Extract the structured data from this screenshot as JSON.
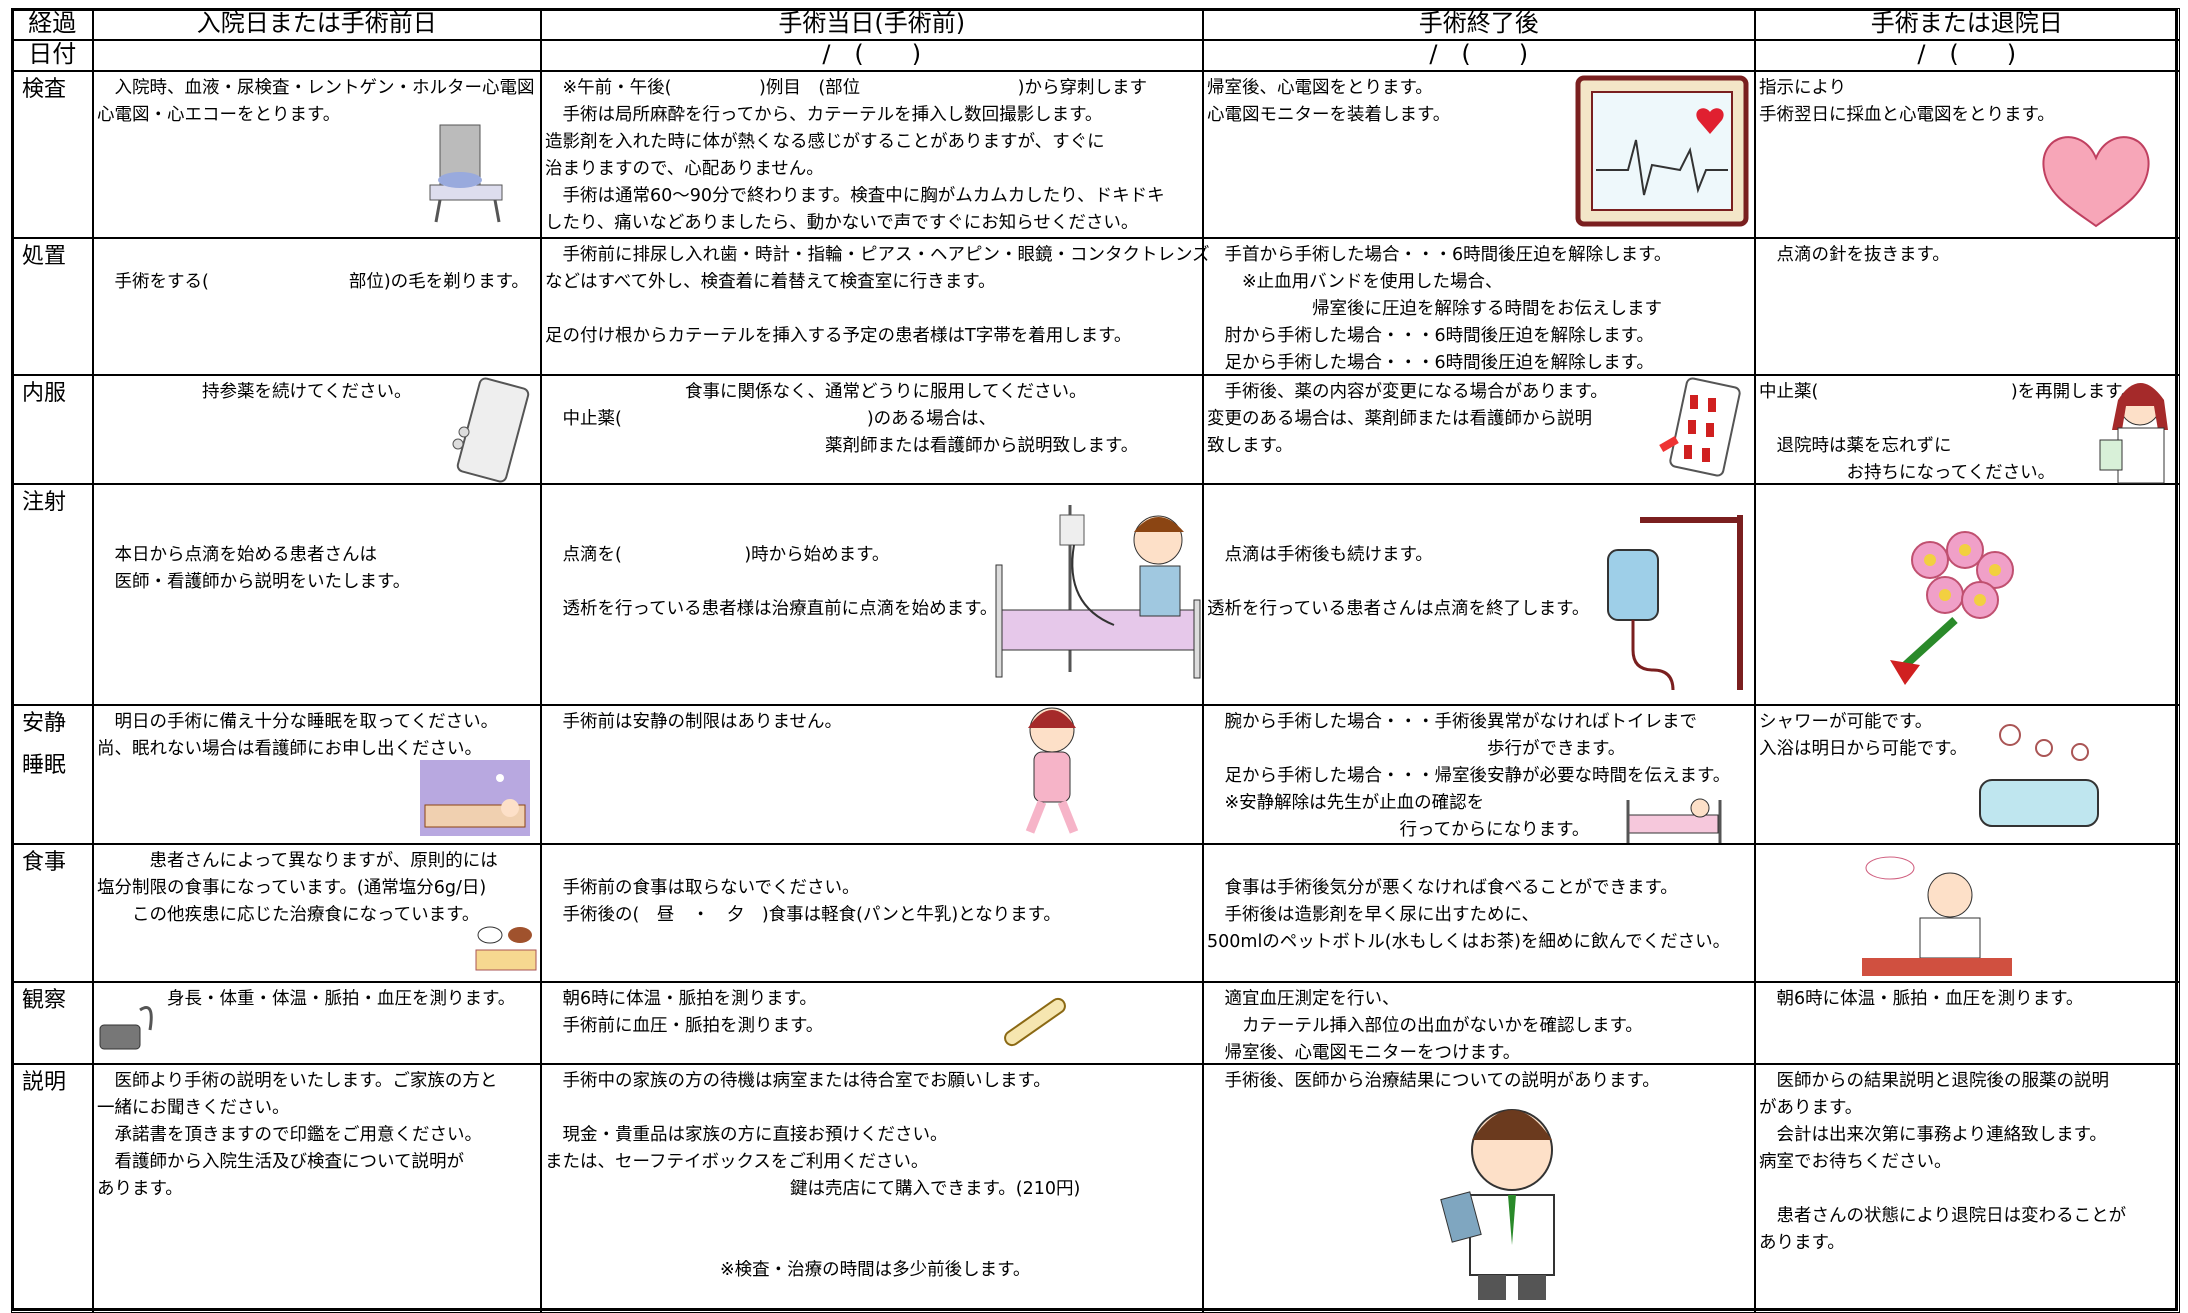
{
  "header": {
    "label": "経過",
    "columns": [
      "入院日または手術前日",
      "手術当日(手術前)",
      "手術終了後",
      "手術または退院日"
    ]
  },
  "date_row": {
    "label": "日付",
    "values": [
      null,
      "/　(　　)",
      "/　(　　)",
      "/　(　　)"
    ]
  },
  "rows": [
    {
      "label": "検査",
      "cells": [
        [
          [
            "　入院時、血液・尿検査・レントゲン・ホルター心電図",
            "心電図・心エコーをとります。"
          ]
        ],
        [
          [
            "　※午前・午後(　　　　　)例目　(部位　　　　　　　　　)から穿刺します",
            "　手術は局所麻酔を行ってから、カテーテルを挿入し数回撮影します。",
            "造影剤を入れた時に体が熱くなる感じがすることがありますが、すぐに",
            "治まりますので、心配ありません。",
            "　手術は通常60～90分で終わります。検査中に胸がムカムカしたり、ドキドキ",
            "したり、痛いなどありましたら、動かないで声ですぐにお知らせください。"
          ]
        ],
        [
          [
            "帰室後、心電図をとります。",
            "心電図モニターを装着します。"
          ]
        ],
        [
          [
            "指示により",
            "手術翌日に採血と心電図をとります。"
          ]
        ]
      ]
    },
    {
      "label": "処置",
      "cells": [
        [
          [
            "　手術をする(　　　　　　　　部位)の毛を剃ります。"
          ]
        ],
        [
          [
            "　手術前に排尿し入れ歯・時計・指輪・ピアス・ヘアピン・眼鏡・コンタクトレンズ",
            "などはすべて外し、検査着に着替えて検査室に行きます。"
          ],
          [
            "足の付け根からカテーテルを挿入する予定の患者様はT字帯を着用します。"
          ]
        ],
        [
          [
            "　手首から手術した場合・・・6時間後圧迫を解除します。",
            "　　※止血用バンドを使用した場合、",
            "　　　　　　帰室後に圧迫を解除する時間をお伝えします",
            "　肘から手術した場合・・・6時間後圧迫を解除します。",
            "　足から手術した場合・・・6時間後圧迫を解除します。"
          ]
        ],
        [
          [
            "　点滴の針を抜きます。"
          ]
        ]
      ]
    },
    {
      "label": "内服",
      "cells": [
        [
          [
            "　　　　　　持参薬を続けてください。"
          ]
        ],
        [
          [
            "　　　　　　　　食事に関係なく、通常どうりに服用してください。",
            "　中止薬(　　　　　　　　　　　　　　)のある場合は、",
            "　　　　　　　　　　　　　　　　薬剤師または看護師から説明致します。"
          ]
        ],
        [
          [
            "　手術後、薬の内容が変更になる場合があります。",
            "変更のある場合は、薬剤師または看護師から説明",
            "致します。"
          ]
        ],
        [
          [
            "中止薬(　　　　　　　　　　　)を再開します。"
          ],
          [
            "　退院時は薬を忘れずに",
            "　　　　　お持ちになってください。"
          ]
        ]
      ]
    },
    {
      "label": "注射",
      "cells": [
        [
          [
            "　本日から点滴を始める患者さんは",
            "　医師・看護師から説明をいたします。"
          ]
        ],
        [
          [
            "　点滴を(　　　　　　　)時から始めます。"
          ],
          [
            "　透析を行っている患者様は治療直前に点滴を始めます。"
          ]
        ],
        [
          [
            "　点滴は手術後も続けます。"
          ],
          [
            "透析を行っている患者さんは点滴を終了します。"
          ]
        ],
        []
      ]
    },
    {
      "label": [
        "安静",
        "睡眠"
      ],
      "cells": [
        [
          [
            "　明日の手術に備え十分な睡眠を取ってください。",
            "尚、眠れない場合は看護師にお申し出ください。"
          ]
        ],
        [
          [
            "　手術前は安静の制限はありません。"
          ]
        ],
        [
          [
            "　腕から手術した場合・・・手術後異常がなければトイレまで",
            "　　　　　　　　　　　　　　　　歩行ができます。",
            "　足から手術した場合・・・帰室後安静が必要な時間を伝えます。",
            "　※安静解除は先生が止血の確認を",
            "　　　　　　　　　　　行ってからになります。"
          ]
        ],
        [
          [
            "シャワーが可能です。",
            "入浴は明日から可能です。"
          ]
        ]
      ]
    },
    {
      "label": "食事",
      "cells": [
        [
          [
            "　　　患者さんによって異なりますが、原則的には",
            "塩分制限の食事になっています。(通常塩分6g/日)",
            "　　この他疾患に応じた治療食になっています。"
          ]
        ],
        [
          [
            "　手術前の食事は取らないでください。",
            "　手術後の(　昼　・　夕　)食事は軽食(パンと牛乳)となります。"
          ]
        ],
        [
          [
            "　食事は手術後気分が悪くなければ食べることができます。",
            "　手術後は造影剤を早く尿に出すために、",
            "500mlのペットボトル(水もしくはお茶)を細めに飲んでください。"
          ]
        ],
        []
      ]
    },
    {
      "label": "観察",
      "cells": [
        [
          [
            "　　　　身長・体重・体温・脈拍・血圧を測ります。"
          ]
        ],
        [
          [
            "　朝6時に体温・脈拍を測ります。",
            "　手術前に血圧・脈拍を測ります。"
          ]
        ],
        [
          [
            "　適宜血圧測定を行い、",
            "　　カテーテル挿入部位の出血がないかを確認します。",
            "　帰室後、心電図モニターをつけます。"
          ]
        ],
        [
          [
            "　朝6時に体温・脈拍・血圧を測ります。"
          ]
        ]
      ]
    },
    {
      "label": "説明",
      "cells": [
        [
          [
            "　医師より手術の説明をいたします。ご家族の方と",
            "一緒にお聞きください。",
            "　承諾書を頂きますので印鑑をご用意ください。",
            "　看護師から入院生活及び検査について説明が",
            "あります。"
          ]
        ],
        [
          [
            "　手術中の家族の方の待機は病室または待合室でお願いします。"
          ],
          [
            "　現金・貴重品は家族の方に直接お預けください。",
            "または、セーフテイボックスをご利用ください。",
            "　　　　　　　　　　　　　　鍵は売店にて購入できます。(210円)"
          ],
          [
            "　　　　　　　　　　※検査・治療の時間は多少前後します。"
          ]
        ],
        [
          [
            "　手術後、医師から治療結果についての説明があります。"
          ]
        ],
        [
          [
            "　医師からの結果説明と退院後の服薬の説明",
            "があります。",
            "　会計は出来次第に事務より連絡致します。",
            "病室でお待ちください。"
          ],
          [
            "　患者さんの状態により退院日は変わることが",
            "あります。"
          ]
        ]
      ]
    }
  ]
}
